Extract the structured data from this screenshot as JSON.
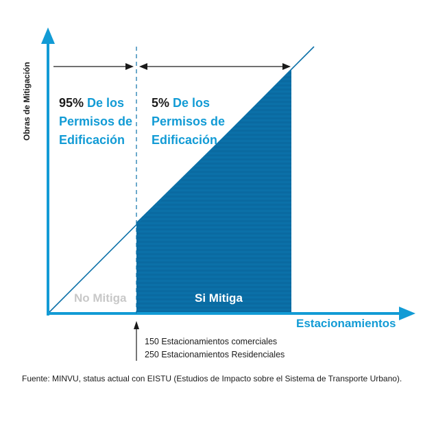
{
  "diagram": {
    "y_axis_label": "Obras de Mitigación",
    "x_axis_label": "Estacionamientos",
    "left_region": {
      "percent": "95%",
      "line1": "De los",
      "line2": "Permisos de",
      "line3": "Edificación",
      "label": "No Mitiga"
    },
    "right_region": {
      "percent": "5%",
      "line1": "De los",
      "line2": "Permisos de",
      "line3": "Edificación",
      "label": "Si Mitiga"
    },
    "threshold_notes": [
      "150 Estacionamientos comerciales",
      "250 Estacionamientos Residenciales"
    ]
  },
  "source": "Fuente:  MINVU, status actual con EISTU (Estudios de Impacto sobre el Sistema de Transporte Urbano).",
  "colors": {
    "accent": "#129bd5",
    "fill": "#0b70a8",
    "no_mitiga": "#c8c8c8",
    "text": "#1a1a1a"
  }
}
